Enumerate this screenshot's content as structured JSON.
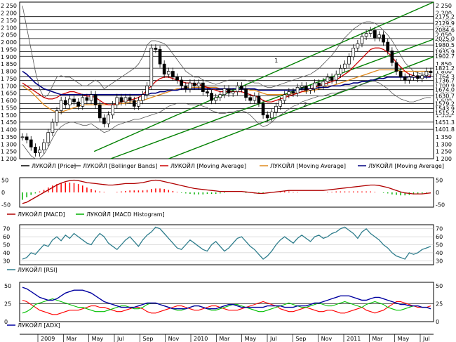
{
  "colors": {
    "price": "#000000",
    "bollinger": "#555555",
    "ma_fast": "#cc0000",
    "ma_mid": "#e08a1e",
    "ma_slow": "#000080",
    "macd": "#b00000",
    "macd_signal_pos": "#ff0000",
    "macd_hist_neg": "#00b000",
    "rsi": "#2e7d8c",
    "adx": "#0000a0",
    "di_plus": "#00c000",
    "di_minus": "#ff0000",
    "channel": "#008000",
    "grid": "#000000"
  },
  "chart_data": [
    {
      "id": "price",
      "type": "candlestick",
      "ylim": [
        1200,
        2275
      ],
      "yticks_right": [
        "2 250",
        "2 200",
        "2 150",
        "2 100",
        "2 050",
        "2 000",
        "1 950",
        "1 900",
        "1 850",
        "1 800",
        "1 750",
        "1 700",
        "1 650",
        "1 600",
        "1 550",
        "1 500",
        "1 450",
        "1 400",
        "1 350",
        "1 300",
        "1 250",
        "1 200"
      ],
      "yticks_left": [
        "2 250",
        "2 200",
        "2 150",
        "2 100",
        "2 050",
        "2 000",
        "1 950",
        "1 900",
        "1 850",
        "1 800",
        "1 750",
        "1 700",
        "1 650",
        "1 600",
        "1 550",
        "1 500",
        "1 450",
        "1 400",
        "1 350",
        "1 300",
        "1 250",
        "1 200"
      ],
      "level_labels": [
        "2175.2",
        "2129.9",
        "2084.6",
        "2025.0",
        "1980.5",
        "1935.9",
        "1902.7",
        "1821.2",
        "1764.3",
        "1736.7",
        "1700.9",
        "1674.0",
        "1630.7",
        "1579.2",
        "1543.9",
        "1515.2",
        "1451.3",
        "1401.8"
      ],
      "levels": [
        2175.2,
        2129.9,
        2084.6,
        2025.0,
        1980.5,
        1935.9,
        1902.7,
        1821.2,
        1764.3,
        1736.7,
        1700.9,
        1674.0,
        1630.7,
        1579.2,
        1543.9,
        1515.2,
        1451.3,
        1401.8
      ],
      "channel_labels": [
        "1",
        "2"
      ],
      "close": [
        1350,
        1330,
        1280,
        1240,
        1260,
        1310,
        1380,
        1450,
        1530,
        1600,
        1570,
        1610,
        1590,
        1560,
        1620,
        1600,
        1640,
        1570,
        1480,
        1440,
        1500,
        1570,
        1620,
        1590,
        1620,
        1600,
        1560,
        1600,
        1640,
        1700,
        1960,
        1950,
        1850,
        1780,
        1800,
        1760,
        1740,
        1700,
        1680,
        1720,
        1700,
        1720,
        1660,
        1650,
        1600,
        1620,
        1640,
        1680,
        1650,
        1660,
        1700,
        1680,
        1620,
        1600,
        1630,
        1580,
        1500,
        1480,
        1520,
        1560,
        1600,
        1640,
        1660,
        1650,
        1690,
        1700,
        1670,
        1680,
        1720,
        1700,
        1730,
        1760,
        1740,
        1780,
        1820,
        1850,
        1900,
        1960,
        1990,
        2040,
        2060,
        2080,
        2030,
        2050,
        2000,
        1940,
        1860,
        1800,
        1760,
        1740,
        1760,
        1770,
        1750,
        1770,
        1800,
        1790
      ],
      "bollinger_upper": [
        2250,
        2100,
        1950,
        1800,
        1680,
        1620,
        1640,
        1700,
        1760,
        1770,
        1760,
        1760,
        1740,
        1720,
        1700,
        1700,
        1720,
        1740,
        1720,
        1680,
        1700,
        1720,
        1740,
        1760,
        1780,
        1800,
        1820,
        1850,
        1900,
        1980,
        2010,
        2010,
        2000,
        1990,
        1960,
        1920,
        1880,
        1840,
        1800,
        1780,
        1760,
        1760,
        1740,
        1730,
        1720,
        1710,
        1720,
        1730,
        1740,
        1740,
        1740,
        1740,
        1740,
        1730,
        1720,
        1720,
        1700,
        1690,
        1690,
        1700,
        1710,
        1720,
        1730,
        1740,
        1750,
        1760,
        1770,
        1780,
        1800,
        1820,
        1850,
        1880,
        1910,
        1950,
        1990,
        2030,
        2060,
        2090,
        2110,
        2130,
        2140,
        2140,
        2130,
        2110,
        2080,
        2050,
        2010,
        1960,
        1910,
        1860,
        1830,
        1800,
        1790,
        1780,
        1780,
        1780
      ],
      "bollinger_lower": [
        1300,
        1260,
        1220,
        1200,
        1200,
        1230,
        1280,
        1340,
        1390,
        1420,
        1440,
        1450,
        1450,
        1440,
        1430,
        1430,
        1440,
        1420,
        1400,
        1380,
        1390,
        1410,
        1430,
        1440,
        1450,
        1460,
        1470,
        1470,
        1480,
        1490,
        1500,
        1510,
        1520,
        1540,
        1560,
        1570,
        1580,
        1580,
        1580,
        1570,
        1570,
        1570,
        1560,
        1550,
        1530,
        1520,
        1510,
        1510,
        1520,
        1520,
        1530,
        1530,
        1520,
        1500,
        1470,
        1440,
        1420,
        1430,
        1450,
        1480,
        1500,
        1520,
        1540,
        1560,
        1570,
        1590,
        1600,
        1610,
        1620,
        1630,
        1630,
        1640,
        1650,
        1650,
        1660,
        1670,
        1680,
        1680,
        1700,
        1710,
        1720,
        1730,
        1730,
        1720,
        1700,
        1680,
        1650,
        1630,
        1610,
        1600,
        1590,
        1590,
        1600,
        1610,
        1620,
        1620
      ],
      "ma_fast": [
        1720,
        1700,
        1680,
        1660,
        1640,
        1620,
        1610,
        1610,
        1620,
        1640,
        1650,
        1660,
        1660,
        1650,
        1640,
        1630,
        1630,
        1620,
        1600,
        1580,
        1570,
        1570,
        1580,
        1590,
        1600,
        1600,
        1610,
        1620,
        1640,
        1670,
        1700,
        1730,
        1750,
        1760,
        1760,
        1750,
        1740,
        1730,
        1720,
        1720,
        1710,
        1710,
        1700,
        1690,
        1680,
        1670,
        1660,
        1660,
        1660,
        1660,
        1660,
        1660,
        1650,
        1640,
        1630,
        1620,
        1600,
        1590,
        1590,
        1600,
        1610,
        1620,
        1630,
        1640,
        1650,
        1660,
        1670,
        1680,
        1690,
        1700,
        1710,
        1720,
        1730,
        1740,
        1760,
        1780,
        1800,
        1830,
        1860,
        1890,
        1920,
        1950,
        1960,
        1960,
        1950,
        1930,
        1900,
        1860,
        1830,
        1800,
        1780,
        1770,
        1760,
        1760,
        1760,
        1770
      ],
      "ma_mid": [
        1700,
        1680,
        1660,
        1630,
        1600,
        1570,
        1550,
        1530,
        1520,
        1520,
        1530,
        1540,
        1550,
        1560,
        1570,
        1570,
        1570,
        1570,
        1570,
        1570,
        1570,
        1570,
        1570,
        1580,
        1580,
        1590,
        1590,
        1600,
        1600,
        1610,
        1620,
        1630,
        1640,
        1650,
        1660,
        1670,
        1680,
        1680,
        1690,
        1690,
        1690,
        1690,
        1690,
        1690,
        1690,
        1690,
        1680,
        1680,
        1680,
        1680,
        1680,
        1680,
        1680,
        1670,
        1670,
        1660,
        1650,
        1640,
        1640,
        1640,
        1640,
        1640,
        1640,
        1650,
        1650,
        1660,
        1660,
        1670,
        1670,
        1680,
        1690,
        1700,
        1700,
        1710,
        1720,
        1730,
        1740,
        1750,
        1760,
        1770,
        1780,
        1790,
        1800,
        1810,
        1810,
        1810,
        1810,
        1810,
        1800,
        1800,
        1800,
        1800,
        1800,
        1800,
        1800,
        1800
      ],
      "ma_slow": [
        1800,
        1780,
        1750,
        1720,
        1700,
        1680,
        1670,
        1660,
        1650,
        1640,
        1640,
        1640,
        1640,
        1640,
        1640,
        1640,
        1640,
        1640,
        1640,
        1640,
        1640,
        1640,
        1640,
        1640,
        1640,
        1640,
        1640,
        1640,
        1640,
        1640,
        1650,
        1650,
        1660,
        1660,
        1670,
        1670,
        1670,
        1680,
        1680,
        1680,
        1680,
        1680,
        1680,
        1680,
        1680,
        1680,
        1680,
        1680,
        1680,
        1680,
        1680,
        1680,
        1680,
        1680,
        1680,
        1670,
        1670,
        1670,
        1670,
        1670,
        1670,
        1670,
        1670,
        1670,
        1670,
        1680,
        1680,
        1680,
        1680,
        1690,
        1690,
        1690,
        1700,
        1700,
        1700,
        1710,
        1710,
        1720,
        1720,
        1730,
        1730,
        1740,
        1740,
        1750,
        1750,
        1760,
        1760,
        1760,
        1760,
        1760,
        1760,
        1760,
        1760,
        1760,
        1760,
        1760
      ]
    },
    {
      "id": "macd",
      "type": "line+bar",
      "ylim": [
        -60,
        60
      ],
      "macd": [
        -45,
        -40,
        -30,
        -20,
        -10,
        0,
        10,
        20,
        30,
        38,
        44,
        48,
        50,
        48,
        44,
        40,
        38,
        36,
        34,
        32,
        30,
        30,
        32,
        34,
        36,
        36,
        36,
        38,
        40,
        44,
        48,
        50,
        48,
        44,
        40,
        36,
        32,
        28,
        24,
        20,
        16,
        14,
        12,
        10,
        8,
        6,
        4,
        4,
        4,
        4,
        4,
        4,
        2,
        0,
        -2,
        -4,
        -4,
        -2,
        0,
        2,
        4,
        6,
        8,
        8,
        8,
        8,
        8,
        8,
        8,
        8,
        8,
        10,
        12,
        14,
        16,
        18,
        20,
        22,
        24,
        26,
        28,
        30,
        30,
        28,
        24,
        20,
        14,
        8,
        2,
        -2,
        -4,
        -6,
        -6,
        -6,
        -4,
        -2
      ],
      "hist": [
        -30,
        -20,
        -10,
        -4,
        4,
        10,
        20,
        28,
        34,
        38,
        40,
        40,
        38,
        34,
        28,
        20,
        14,
        8,
        4,
        2,
        0,
        0,
        2,
        4,
        6,
        8,
        8,
        8,
        8,
        10,
        14,
        16,
        16,
        14,
        10,
        6,
        2,
        -2,
        -4,
        -6,
        -8,
        -8,
        -8,
        -6,
        -6,
        -6,
        -4,
        -2,
        0,
        0,
        0,
        0,
        -2,
        -2,
        -4,
        -4,
        -4,
        -2,
        0,
        2,
        4,
        4,
        4,
        2,
        2,
        0,
        0,
        0,
        0,
        0,
        0,
        2,
        2,
        4,
        4,
        4,
        4,
        4,
        4,
        4,
        4,
        4,
        2,
        0,
        -2,
        -4,
        -8,
        -10,
        -12,
        -12,
        -10,
        -8,
        -6,
        -4,
        -2,
        0
      ],
      "yticks": [
        "50",
        "0",
        "-50"
      ]
    },
    {
      "id": "rsi",
      "type": "line",
      "ylim": [
        25,
        75
      ],
      "values": [
        32,
        34,
        40,
        38,
        44,
        50,
        48,
        56,
        60,
        55,
        62,
        58,
        64,
        60,
        56,
        52,
        50,
        58,
        64,
        60,
        52,
        48,
        44,
        50,
        56,
        60,
        54,
        48,
        56,
        62,
        66,
        72,
        70,
        64,
        58,
        52,
        46,
        44,
        50,
        56,
        52,
        48,
        44,
        42,
        50,
        54,
        48,
        42,
        46,
        52,
        58,
        60,
        54,
        48,
        44,
        38,
        32,
        36,
        42,
        50,
        56,
        60,
        56,
        52,
        58,
        62,
        58,
        54,
        60,
        62,
        58,
        60,
        64,
        66,
        70,
        72,
        68,
        64,
        58,
        66,
        70,
        64,
        60,
        56,
        50,
        46,
        40,
        36,
        34,
        32,
        40,
        38,
        40,
        44,
        46,
        48
      ],
      "yticks": [
        "70",
        "60",
        "50",
        "40",
        "30"
      ]
    },
    {
      "id": "adx",
      "type": "line",
      "ylim": [
        0,
        55
      ],
      "adx": [
        48,
        46,
        42,
        38,
        34,
        32,
        30,
        30,
        32,
        36,
        40,
        42,
        44,
        44,
        44,
        42,
        40,
        36,
        32,
        28,
        26,
        24,
        22,
        20,
        20,
        20,
        20,
        22,
        24,
        26,
        26,
        26,
        24,
        22,
        20,
        18,
        18,
        18,
        18,
        20,
        22,
        22,
        20,
        18,
        18,
        18,
        20,
        22,
        24,
        24,
        22,
        20,
        20,
        20,
        20,
        20,
        20,
        22,
        22,
        22,
        22,
        20,
        20,
        20,
        22,
        22,
        22,
        24,
        26,
        26,
        28,
        30,
        32,
        34,
        36,
        36,
        36,
        34,
        32,
        30,
        30,
        32,
        34,
        34,
        32,
        30,
        28,
        26,
        24,
        24,
        22,
        22,
        22,
        20,
        20,
        18
      ],
      "di_plus": [
        12,
        14,
        18,
        24,
        26,
        28,
        30,
        32,
        30,
        28,
        26,
        24,
        22,
        20,
        20,
        18,
        16,
        14,
        14,
        14,
        16,
        18,
        20,
        22,
        22,
        20,
        18,
        18,
        20,
        24,
        26,
        26,
        24,
        22,
        20,
        18,
        16,
        16,
        18,
        20,
        22,
        22,
        20,
        18,
        16,
        16,
        18,
        20,
        22,
        24,
        24,
        22,
        20,
        18,
        16,
        14,
        14,
        16,
        18,
        20,
        22,
        24,
        26,
        24,
        22,
        20,
        20,
        22,
        24,
        26,
        24,
        22,
        22,
        24,
        26,
        28,
        26,
        24,
        22,
        20,
        24,
        26,
        28,
        26,
        24,
        20,
        18,
        16,
        16,
        18,
        20,
        22,
        22,
        20,
        20,
        18
      ],
      "di_minus": [
        30,
        28,
        24,
        20,
        16,
        14,
        12,
        10,
        10,
        12,
        14,
        16,
        16,
        16,
        18,
        20,
        22,
        22,
        20,
        20,
        18,
        16,
        14,
        14,
        16,
        18,
        20,
        20,
        18,
        14,
        12,
        12,
        14,
        16,
        18,
        20,
        22,
        22,
        20,
        18,
        16,
        16,
        18,
        20,
        22,
        22,
        20,
        18,
        16,
        16,
        16,
        18,
        20,
        22,
        24,
        26,
        28,
        26,
        24,
        22,
        18,
        16,
        14,
        14,
        16,
        18,
        20,
        18,
        16,
        14,
        14,
        16,
        16,
        14,
        12,
        12,
        14,
        16,
        18,
        20,
        16,
        14,
        12,
        14,
        16,
        20,
        24,
        28,
        28,
        26,
        24,
        22,
        20,
        20,
        20,
        22
      ],
      "yticks": [
        "50",
        "25",
        "0"
      ]
    }
  ],
  "legend": {
    "price": [
      "ЛУКОЙЛ [Price]",
      "ЛУКОЙЛ [Bollinger Bands]",
      "ЛУКОЙЛ [Moving Average]",
      "ЛУКОЙЛ [Moving Average]",
      "ЛУКОЙЛ [Moving Average]"
    ],
    "macd": [
      "ЛУКОЙЛ [MACD]",
      "ЛУКОЙЛ [MACD Histogram]"
    ],
    "rsi": [
      "ЛУКОЙЛ [RSI]"
    ],
    "adx": [
      "ЛУКОЙЛ [ADX]"
    ]
  },
  "x_axis": [
    "2009",
    "Mar",
    "May",
    "Jul",
    "Sep",
    "Nov",
    "2010",
    "Mar",
    "May",
    "Jul",
    "Sep",
    "Nov",
    "2011",
    "Mar",
    "May",
    "Jul"
  ]
}
